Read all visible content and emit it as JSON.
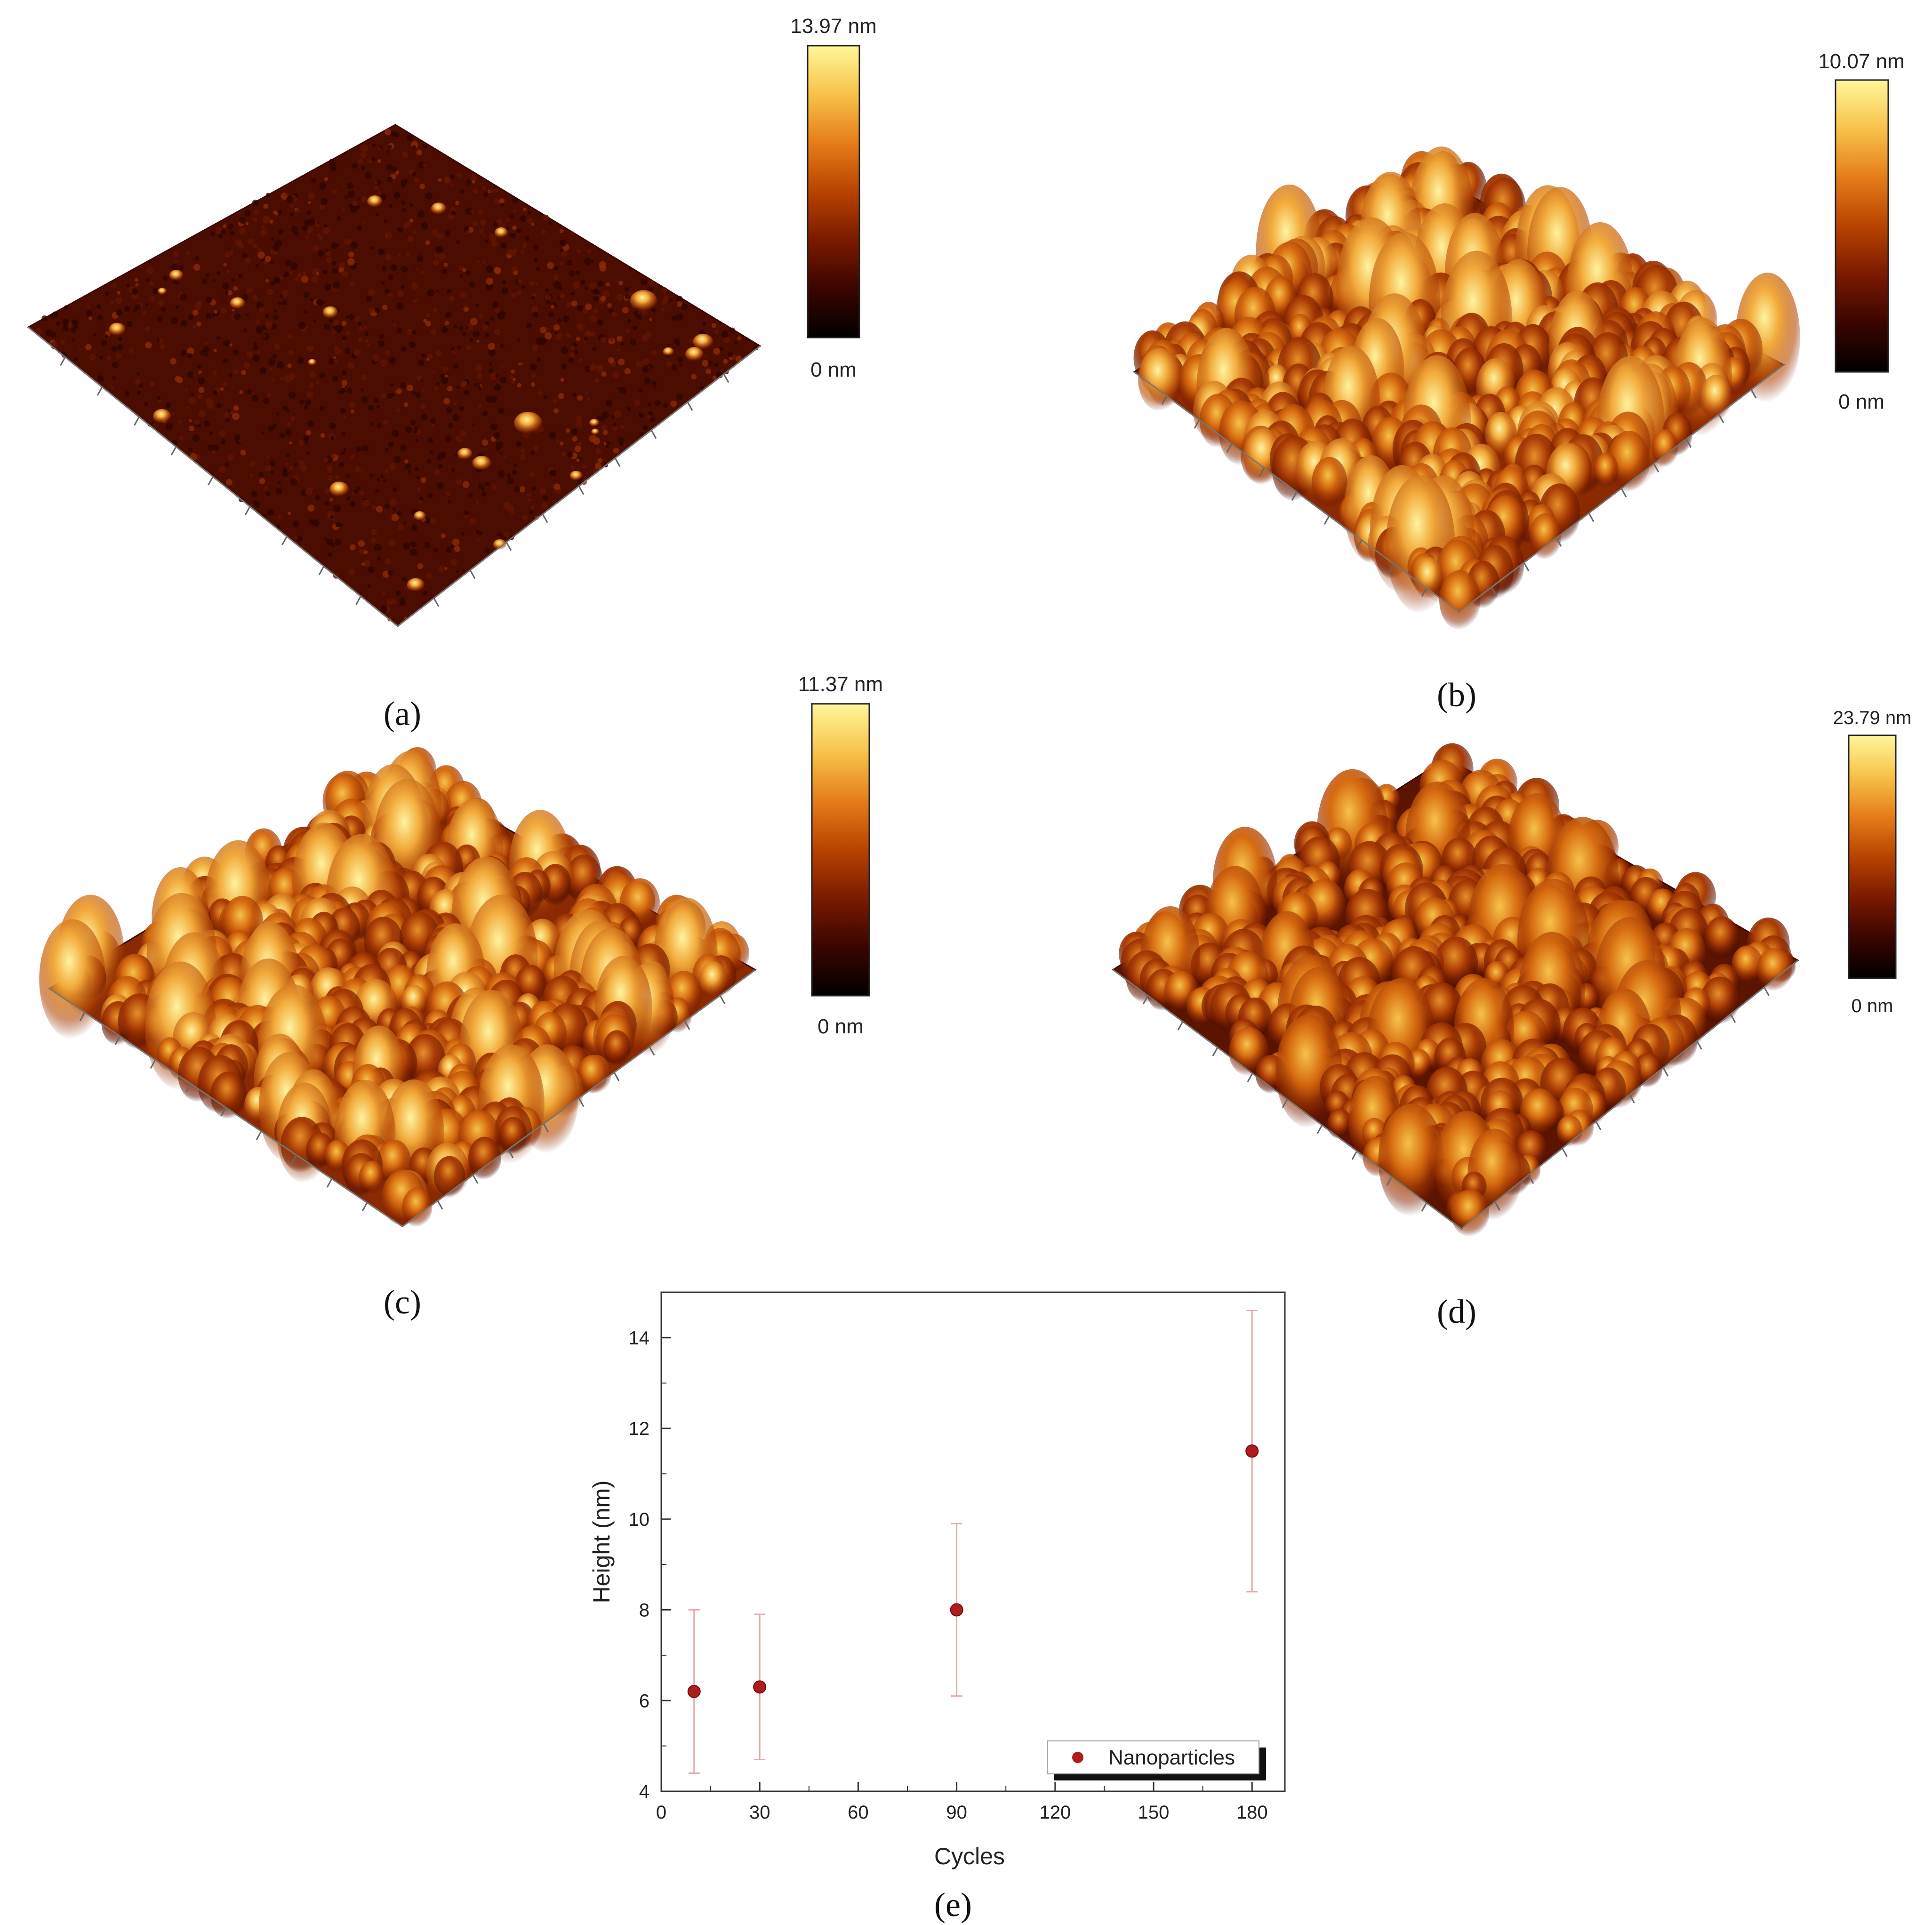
{
  "panels": [
    {
      "id": "a",
      "label": "(a)",
      "colorbar_max": "13.97 nm",
      "colorbar_min": "0 nm",
      "roughness": 0.08,
      "spots": 0.6,
      "brightness": 0.35
    },
    {
      "id": "b",
      "label": "(b)",
      "colorbar_max": "10.07 nm",
      "colorbar_min": "0 nm",
      "roughness": 1.0,
      "spots": 0,
      "brightness": 0.72
    },
    {
      "id": "c",
      "label": "(c)",
      "colorbar_max": "11.37 nm",
      "colorbar_min": "0 nm",
      "roughness": 0.9,
      "spots": 0,
      "brightness": 0.7
    },
    {
      "id": "d",
      "label": "(d)",
      "colorbar_max": "23.79 nm",
      "colorbar_min": "0 nm",
      "roughness": 0.85,
      "spots": 0,
      "brightness": 0.5
    }
  ],
  "colormap": [
    "#000000",
    "#3a0500",
    "#7a1a00",
    "#b84300",
    "#e57d1a",
    "#f7c24a",
    "#fff79a"
  ],
  "chart_data": {
    "type": "scatter",
    "panel_label": "(e)",
    "xlabel": "Cycles",
    "ylabel": "Height (nm)",
    "xlim": [
      0,
      190
    ],
    "ylim": [
      4,
      15
    ],
    "x_ticks": [
      0,
      30,
      60,
      90,
      120,
      150,
      180
    ],
    "y_ticks": [
      4,
      6,
      8,
      10,
      12,
      14
    ],
    "grid": false,
    "legend_position": "bottom-right",
    "series": [
      {
        "name": "Nanoparticles",
        "color": "#b01c1c",
        "errorbar_color": "#e8a8a8",
        "x": [
          10,
          30,
          90,
          180
        ],
        "y": [
          6.2,
          6.3,
          8.0,
          11.5
        ],
        "err": [
          1.8,
          1.6,
          1.9,
          3.1
        ]
      }
    ]
  }
}
